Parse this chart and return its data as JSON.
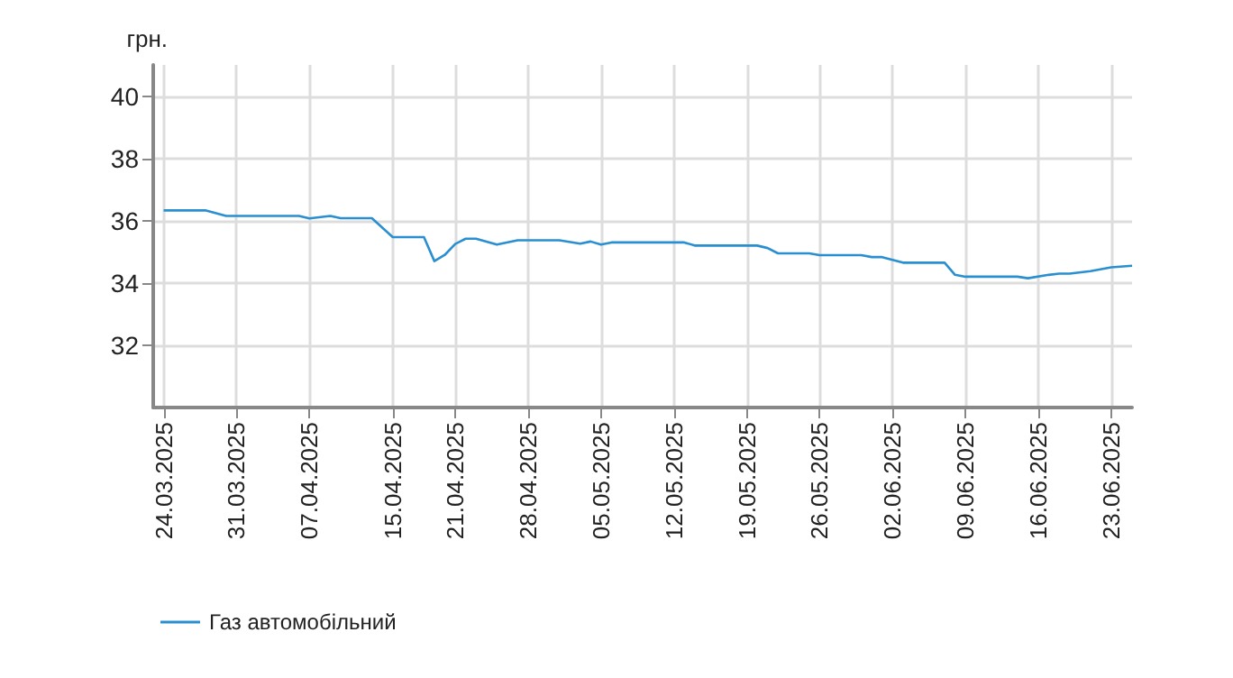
{
  "chart_data": {
    "type": "line",
    "ylabel": "грн.",
    "x": [
      "2025-03-24",
      "2025-03-28",
      "2025-03-30",
      "2025-04-06",
      "2025-04-07",
      "2025-04-09",
      "2025-04-10",
      "2025-04-13",
      "2025-04-15",
      "2025-04-18",
      "2025-04-19",
      "2025-04-20",
      "2025-04-21",
      "2025-04-22",
      "2025-04-23",
      "2025-04-25",
      "2025-04-27",
      "2025-05-01",
      "2025-05-03",
      "2025-05-04",
      "2025-05-05",
      "2025-05-06",
      "2025-05-13",
      "2025-05-14",
      "2025-05-20",
      "2025-05-21",
      "2025-05-22",
      "2025-05-25",
      "2025-05-26",
      "2025-05-30",
      "2025-05-31",
      "2025-06-01",
      "2025-06-03",
      "2025-06-07",
      "2025-06-08",
      "2025-06-09",
      "2025-06-14",
      "2025-06-15",
      "2025-06-17",
      "2025-06-18",
      "2025-06-19",
      "2025-06-21",
      "2025-06-23",
      "2025-06-25"
    ],
    "series": [
      {
        "name": "Газ автомобільний",
        "color": "#2a8fd0",
        "values": [
          36.33,
          36.33,
          36.15,
          36.15,
          36.07,
          36.15,
          36.08,
          36.08,
          35.47,
          35.47,
          34.7,
          34.9,
          35.25,
          35.42,
          35.42,
          35.23,
          35.37,
          35.37,
          35.26,
          35.33,
          35.23,
          35.3,
          35.3,
          35.2,
          35.2,
          35.12,
          34.95,
          34.95,
          34.89,
          34.89,
          34.83,
          34.83,
          34.65,
          34.65,
          34.26,
          34.2,
          34.2,
          34.15,
          34.26,
          34.3,
          34.3,
          34.38,
          34.5,
          34.55
        ]
      }
    ],
    "xlim": [
      "2025-03-23",
      "2025-06-25"
    ],
    "xticks": [
      {
        "value": "2025-03-24",
        "label": "24.03.2025"
      },
      {
        "value": "2025-03-31",
        "label": "31.03.2025"
      },
      {
        "value": "2025-04-07",
        "label": "07.04.2025"
      },
      {
        "value": "2025-04-15",
        "label": "15.04.2025"
      },
      {
        "value": "2025-04-21",
        "label": "21.04.2025"
      },
      {
        "value": "2025-04-28",
        "label": "28.04.2025"
      },
      {
        "value": "2025-05-05",
        "label": "05.05.2025"
      },
      {
        "value": "2025-05-12",
        "label": "12.05.2025"
      },
      {
        "value": "2025-05-19",
        "label": "19.05.2025"
      },
      {
        "value": "2025-05-26",
        "label": "26.05.2025"
      },
      {
        "value": "2025-06-02",
        "label": "02.06.2025"
      },
      {
        "value": "2025-06-09",
        "label": "09.06.2025"
      },
      {
        "value": "2025-06-16",
        "label": "16.06.2025"
      },
      {
        "value": "2025-06-23",
        "label": "23.06.2025"
      }
    ],
    "ylim": [
      30,
      41
    ],
    "yticks": [
      32,
      34,
      36,
      38,
      40
    ],
    "grid": true,
    "legend": "bottom left",
    "marker": "none",
    "line_style": "solid"
  }
}
